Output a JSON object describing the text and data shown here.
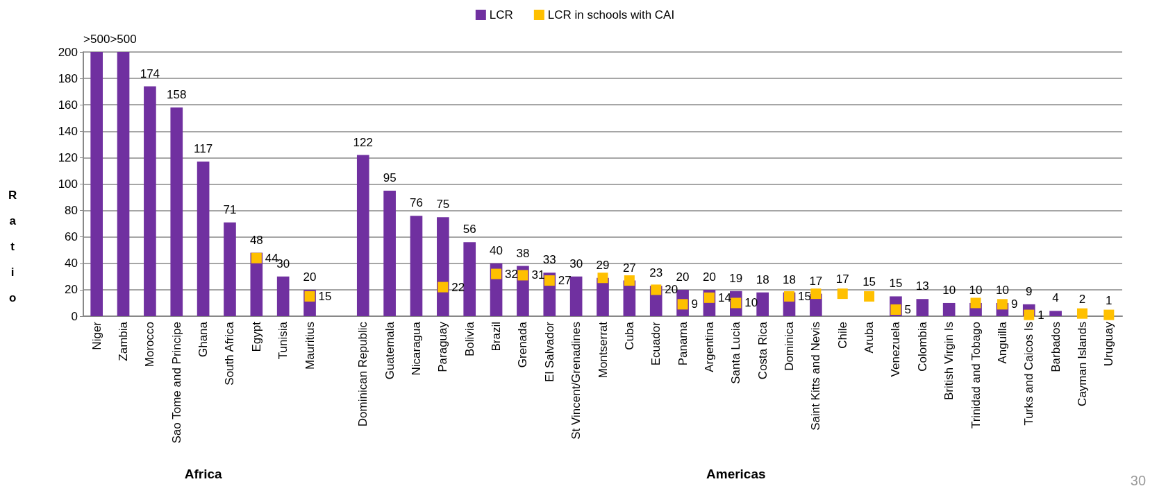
{
  "chart_data": {
    "type": "bar",
    "ylabel": "Ratio",
    "legend": "top",
    "grid": "y",
    "ylim": [
      0,
      200
    ],
    "yticks": [
      0,
      20,
      40,
      60,
      80,
      100,
      120,
      140,
      160,
      180,
      200
    ],
    "categories": [
      "Niger",
      "Zambia",
      "Morocco",
      "Sao Tome and Principe",
      "Ghana",
      "South Africa",
      "Egypt",
      "Tunisia",
      "Mauritius",
      null,
      "Dominican Republic",
      "Guatemala",
      "Nicaragua",
      "Paraguay",
      "Bolivia",
      "Brazil",
      "Grenada",
      "El Salvador",
      "St Vincent/Grenadines",
      "Montserrat",
      "Cuba",
      "Ecuador",
      "Panama",
      "Argentina",
      "Santa Lucia",
      "Costa Rica",
      "Dominica",
      "Saint Kitts and Nevis",
      "Chile",
      "Aruba",
      "Venezuela",
      "Colombia",
      "British Virgin Is",
      "Trinidad and Tobago",
      "Anguilla",
      "Turks and Caicos Is",
      "Barbados",
      "Cayman Islands",
      "Uruguay"
    ],
    "series": [
      {
        "name": "LCR",
        "color": "#7030a0",
        "values": [
          200,
          200,
          174,
          158,
          117,
          71,
          48,
          30,
          20,
          null,
          122,
          95,
          76,
          75,
          56,
          40,
          38,
          33,
          30,
          29,
          27,
          23,
          20,
          20,
          19,
          18,
          18,
          17,
          null,
          null,
          15,
          13,
          10,
          10,
          10,
          9,
          4,
          null,
          null
        ],
        "value_labels": [
          ">500",
          ">500",
          "174",
          "158",
          "117",
          "71",
          "48",
          "30",
          "20",
          null,
          "122",
          "95",
          "76",
          "75",
          "56",
          "40",
          "38",
          "33",
          "30",
          "29",
          "27",
          "23",
          "20",
          "20",
          "19",
          "18",
          "18",
          "17",
          null,
          null,
          "15",
          "13",
          "10",
          "10",
          "10",
          "9",
          "4",
          null,
          null
        ]
      },
      {
        "name": "LCR in schools with CAI",
        "type": "scatter",
        "marker": "square",
        "color": "#ffc000",
        "values": [
          null,
          null,
          null,
          null,
          null,
          null,
          44,
          null,
          15,
          null,
          null,
          null,
          null,
          22,
          null,
          32,
          31,
          27,
          null,
          29,
          27,
          20,
          9,
          14,
          10,
          null,
          15,
          17,
          17,
          15,
          5,
          null,
          null,
          10,
          9,
          1,
          null,
          2,
          1
        ],
        "value_labels": [
          null,
          null,
          null,
          null,
          null,
          null,
          "44",
          null,
          "15",
          null,
          null,
          null,
          null,
          "22",
          null,
          "32",
          "31",
          "27",
          null,
          null,
          null,
          "20",
          "9",
          "14",
          "10",
          null,
          "15",
          null,
          "17",
          "15",
          "5",
          null,
          null,
          null,
          "9",
          "1",
          null,
          "2",
          "1"
        ]
      }
    ],
    "annotations": [
      "Africa",
      "Americas",
      "30"
    ]
  }
}
